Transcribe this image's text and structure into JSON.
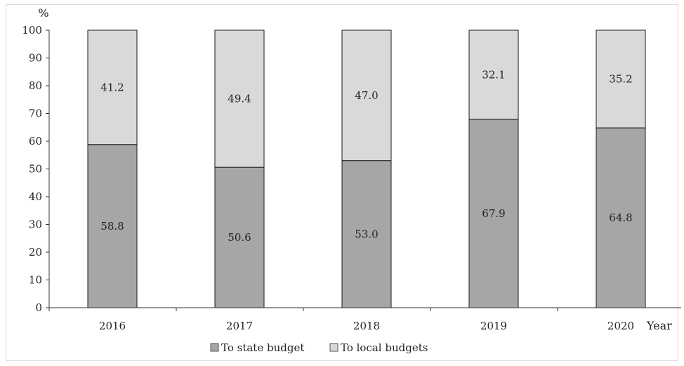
{
  "chart_data": {
    "type": "bar",
    "stacked": true,
    "categories": [
      "2016",
      "2017",
      "2018",
      "2019",
      "2020"
    ],
    "series": [
      {
        "name": "To state budget",
        "values": [
          58.8,
          50.6,
          53.0,
          67.9,
          64.8
        ],
        "color": "#a6a6a6"
      },
      {
        "name": "To local budgets",
        "values": [
          41.2,
          49.4,
          47.0,
          32.1,
          35.2
        ],
        "color": "#d9d9d9"
      }
    ],
    "value_labels": {
      "To state budget": [
        "58.8",
        "50.6",
        "53.0",
        "67.9",
        "64.8"
      ],
      "To local budgets": [
        "41.2",
        "49.4",
        "47.0",
        "32.1",
        "35.2"
      ]
    },
    "xlabel": "Year",
    "ylabel": "%",
    "ylim": [
      0,
      100
    ],
    "yticks": [
      "0",
      "10",
      "20",
      "30",
      "40",
      "50",
      "60",
      "70",
      "80",
      "90",
      "100"
    ],
    "grid": false,
    "legend_position": "bottom"
  }
}
